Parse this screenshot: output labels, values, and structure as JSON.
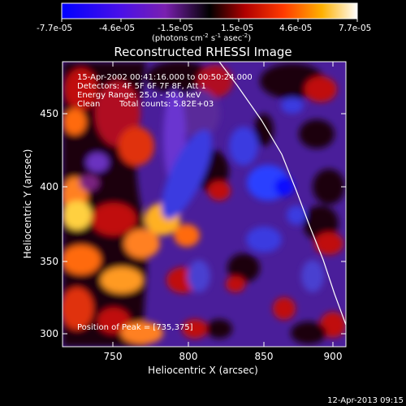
{
  "colorbar": {
    "tick_labels": [
      "-7.7e-05",
      "-4.6e-05",
      "-1.5e-05",
      "1.5e-05",
      "4.6e-05",
      "7.7e-05"
    ],
    "units_main": "(photons cm",
    "units_sup1": "-2",
    "units_mid": " s",
    "units_sup2": "-1",
    "units_tail": " asec",
    "units_sup3": "-2",
    "units_close": ")"
  },
  "title": "Reconstructed RHESSI Image",
  "info": {
    "time_range": "15-Apr-2002 00:41:16.000 to 00:50:24.000",
    "detectors": "Detectors: 4F 5F 6F 7F 8F, Att 1",
    "energy": "Energy Range: 25.0 - 50.0 keV",
    "clean_label": "Clean",
    "total_counts": "Total counts: 5.82E+03",
    "peak": "Position of Peak = [735,375]"
  },
  "axes": {
    "xlabel": "Heliocentric X (arcsec)",
    "ylabel": "Heliocentric Y (arcsec)",
    "x_ticks": [
      "750",
      "800",
      "850",
      "900"
    ],
    "y_ticks": [
      "300",
      "350",
      "400",
      "450"
    ],
    "x_range": [
      715,
      905
    ],
    "y_range": [
      295,
      483
    ]
  },
  "timestamp": "12-Apr-2013 09:15",
  "colors": {
    "background": "#000000",
    "text": "#ffffff",
    "limb_line": "#ffffff"
  }
}
